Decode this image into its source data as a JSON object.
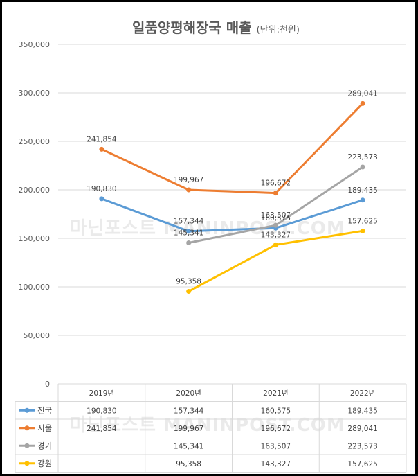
{
  "chart_data": {
    "type": "line",
    "title": "일품양평해장국 매출",
    "title_unit": "(단위:천원)",
    "categories": [
      "2019년",
      "2020년",
      "2021년",
      "2022년"
    ],
    "ylim": [
      0,
      350000
    ],
    "yticks": [
      0,
      50000,
      100000,
      150000,
      200000,
      250000,
      300000,
      350000
    ],
    "ytick_labels": [
      "0",
      "50,000",
      "100,000",
      "150,000",
      "200,000",
      "250,000",
      "300,000",
      "350,000"
    ],
    "grid": true,
    "legend": "data-table",
    "series": [
      {
        "name": "전국",
        "color": "#5b9bd5",
        "values": [
          190830,
          157344,
          160575,
          189435
        ],
        "labels": [
          "190,830",
          "157,344",
          "160,575",
          "189,435"
        ]
      },
      {
        "name": "서울",
        "color": "#ed7d31",
        "values": [
          241854,
          199967,
          196672,
          289041
        ],
        "labels": [
          "241,854",
          "199,967",
          "196,672",
          "289,041"
        ]
      },
      {
        "name": "경기",
        "color": "#a5a5a5",
        "values": [
          null,
          145341,
          163507,
          223573
        ],
        "labels": [
          "",
          "145,341",
          "163,507",
          "223,573"
        ]
      },
      {
        "name": "강원",
        "color": "#ffc000",
        "values": [
          null,
          95358,
          143327,
          157625
        ],
        "labels": [
          "",
          "95,358",
          "143,327",
          "157,625"
        ]
      }
    ]
  },
  "watermark": "마닌포스트 MANINPOST.COM"
}
